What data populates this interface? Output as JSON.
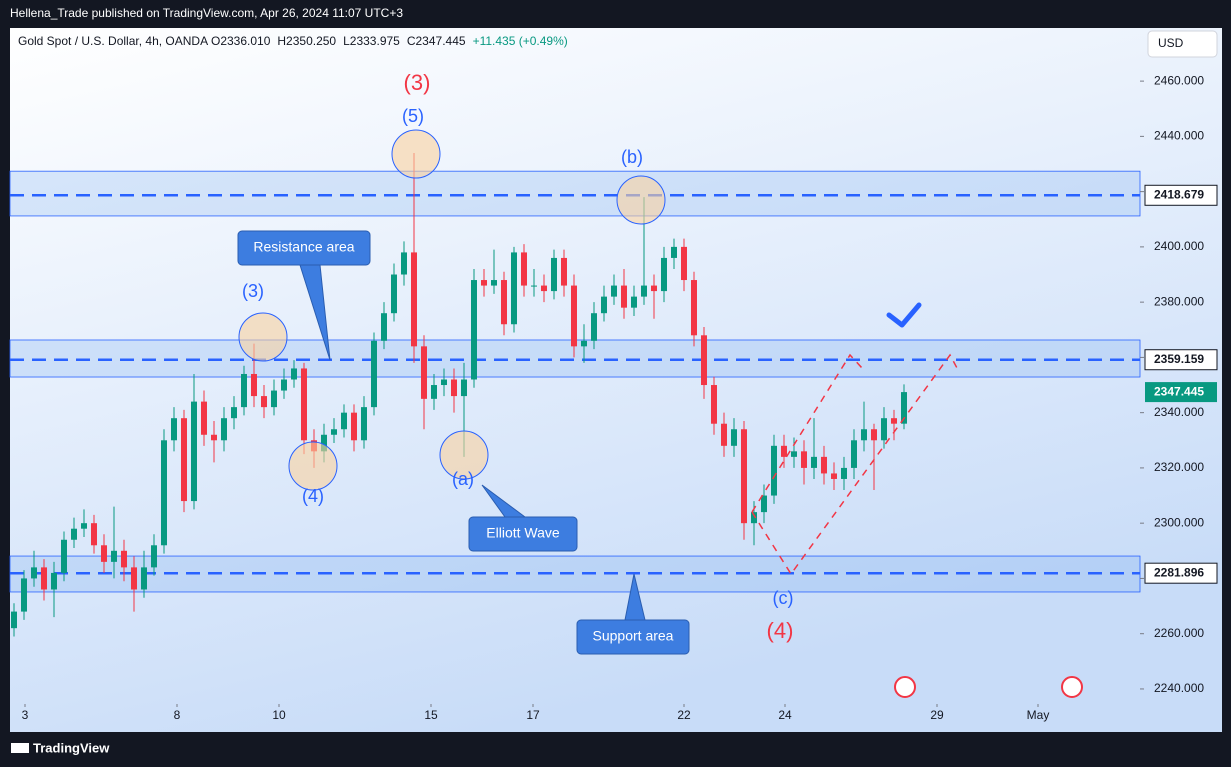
{
  "header": {
    "publisher": "Hellena_Trade published on TradingView.com, Apr 26, 2024 11:07 UTC+3",
    "footer": "TradingView"
  },
  "chart_data": {
    "type": "candlestick",
    "title": "Gold Spot / U.S. Dollar, 4h, OANDA",
    "ohlc_text": [
      "O2336.010",
      "H2350.250",
      "L2333.975",
      "C2347.445",
      "+11.435 (+0.49%)"
    ],
    "currency": "USD",
    "up_color": "#089981",
    "down_color": "#f23645",
    "open": [
      2262,
      2268,
      2280,
      2284,
      2276,
      2282,
      2294,
      2298,
      2300,
      2292,
      2286,
      2290,
      2284,
      2276,
      2284,
      2292,
      2330,
      2338,
      2308,
      2344,
      2332,
      2330,
      2338,
      2342,
      2354,
      2346,
      2342,
      2348,
      2352,
      2356,
      2330,
      2326,
      2332,
      2334,
      2340,
      2330,
      2342,
      2366,
      2376,
      2390,
      2398,
      2364,
      2345,
      2350,
      2352,
      2346,
      2352,
      2388,
      2386,
      2388,
      2372,
      2398,
      2386,
      2386,
      2384,
      2396,
      2386,
      2364,
      2366,
      2376,
      2382,
      2386,
      2378,
      2382,
      2386,
      2384,
      2396,
      2400,
      2388,
      2368,
      2350,
      2336,
      2328,
      2334,
      2300,
      2304,
      2310,
      2328,
      2324,
      2326,
      2320,
      2324,
      2318,
      2316,
      2320,
      2330,
      2334,
      2330,
      2338,
      2336.01
    ],
    "high": [
      2271,
      2283,
      2290,
      2287,
      2286,
      2297,
      2302,
      2305,
      2303,
      2296,
      2306,
      2294,
      2288,
      2290,
      2296,
      2334,
      2342,
      2341,
      2354,
      2348,
      2337,
      2342,
      2346,
      2357,
      2365,
      2350,
      2352,
      2356,
      2359,
      2358,
      2334,
      2336,
      2338,
      2343,
      2343,
      2346,
      2369,
      2380,
      2394,
      2402,
      2434,
      2368,
      2354,
      2356,
      2356,
      2358,
      2392,
      2392,
      2399,
      2391,
      2400,
      2401,
      2392,
      2390,
      2399,
      2399,
      2390,
      2372,
      2380,
      2386,
      2390,
      2392,
      2386,
      2418,
      2390,
      2400,
      2403,
      2403,
      2391,
      2371,
      2353,
      2340,
      2338,
      2337,
      2308,
      2314,
      2332,
      2332,
      2331,
      2330,
      2338,
      2328,
      2322,
      2324,
      2334,
      2344,
      2336,
      2342,
      2341,
      2350.25
    ],
    "low": [
      2259,
      2265,
      2277,
      2272,
      2266,
      2279,
      2291,
      2295,
      2289,
      2282,
      2280,
      2279,
      2268,
      2273,
      2281,
      2289,
      2326,
      2304,
      2305,
      2328,
      2322,
      2326,
      2334,
      2339,
      2342,
      2338,
      2339,
      2345,
      2349,
      2325,
      2320,
      2322,
      2329,
      2331,
      2326,
      2327,
      2339,
      2363,
      2373,
      2386,
      2358,
      2334,
      2341,
      2346,
      2340,
      2324,
      2349,
      2382,
      2383,
      2368,
      2369,
      2382,
      2382,
      2380,
      2381,
      2382,
      2360,
      2358,
      2363,
      2373,
      2379,
      2374,
      2375,
      2379,
      2374,
      2380,
      2392,
      2384,
      2364,
      2345,
      2332,
      2324,
      2324,
      2294,
      2292,
      2300,
      2307,
      2320,
      2320,
      2314,
      2316,
      2314,
      2312,
      2312,
      2316,
      2326,
      2312,
      2327,
      2330,
      2333.975
    ],
    "close": [
      2268,
      2280,
      2284,
      2276,
      2282,
      2294,
      2298,
      2300,
      2292,
      2286,
      2290,
      2284,
      2276,
      2284,
      2292,
      2330,
      2338,
      2308,
      2344,
      2332,
      2330,
      2338,
      2342,
      2354,
      2346,
      2342,
      2348,
      2352,
      2356,
      2330,
      2326,
      2332,
      2334,
      2340,
      2330,
      2342,
      2366,
      2376,
      2390,
      2398,
      2364,
      2345,
      2350,
      2352,
      2346,
      2352,
      2388,
      2386,
      2388,
      2372,
      2398,
      2386,
      2386,
      2384,
      2396,
      2386,
      2364,
      2366,
      2376,
      2382,
      2386,
      2378,
      2382,
      2386,
      2384,
      2396,
      2400,
      2388,
      2368,
      2350,
      2336,
      2328,
      2334,
      2300,
      2304,
      2310,
      2328,
      2324,
      2326,
      2320,
      2324,
      2318,
      2316,
      2320,
      2330,
      2334,
      2330,
      2338,
      2336.01,
      2347.445
    ],
    "xlim": [
      -0.4,
      112.6
    ],
    "xticks": [
      {
        "value": 1.1,
        "label": "3"
      },
      {
        "value": 16.3,
        "label": "8"
      },
      {
        "value": 26.5,
        "label": "10"
      },
      {
        "value": 41.7,
        "label": "15"
      },
      {
        "value": 51.9,
        "label": "17"
      },
      {
        "value": 67,
        "label": "22"
      },
      {
        "value": 77.1,
        "label": "24"
      },
      {
        "value": 92.3,
        "label": "29"
      },
      {
        "value": 102.4,
        "label": "May"
      }
    ],
    "ylim": [
      2236,
      2478.5
    ],
    "yticks": [
      {
        "value": 2240,
        "label": "2240.000"
      },
      {
        "value": 2260,
        "label": "2260.000"
      },
      {
        "value": 2280,
        "label": "2280.000"
      },
      {
        "value": 2300,
        "label": "2300.000"
      },
      {
        "value": 2320,
        "label": "2320.000"
      },
      {
        "value": 2340,
        "label": "2340.000"
      },
      {
        "value": 2360,
        "label": "2360.000"
      },
      {
        "value": 2380,
        "label": "2380.000"
      },
      {
        "value": 2400,
        "label": "2400.000"
      },
      {
        "value": 2420,
        "label": "2420.000"
      },
      {
        "value": 2440,
        "label": "2440.000"
      },
      {
        "value": 2460,
        "label": "2460.000"
      }
    ],
    "zones": [
      [
        2411.2,
        2427.4
      ],
      [
        2352.9,
        2366.3
      ],
      [
        2275.1,
        2288.1
      ]
    ],
    "levels": [
      {
        "value": 2418.679,
        "label": "2418.679"
      },
      {
        "value": 2359.159,
        "label": "2359.159"
      },
      {
        "value": 2281.896,
        "label": "2281.896"
      }
    ],
    "last_price": {
      "value": 2347.445,
      "label": "2347.445"
    },
    "annotations": [
      {
        "text": "(3)",
        "color": "#f23645"
      },
      {
        "text": "(5)",
        "color": "#2962ff"
      },
      {
        "text": "(b)",
        "color": "#2962ff"
      },
      {
        "text": "(3)",
        "color": "#2962ff"
      },
      {
        "text": "(4)",
        "color": "#2962ff"
      },
      {
        "text": "(a)",
        "color": "#2962ff"
      },
      {
        "text": "(c)",
        "color": "#2962ff"
      },
      {
        "text": "(4)",
        "color": "#f23645"
      }
    ],
    "callouts": [
      "Resistance area",
      "Elliott Wave",
      "Support area"
    ]
  }
}
